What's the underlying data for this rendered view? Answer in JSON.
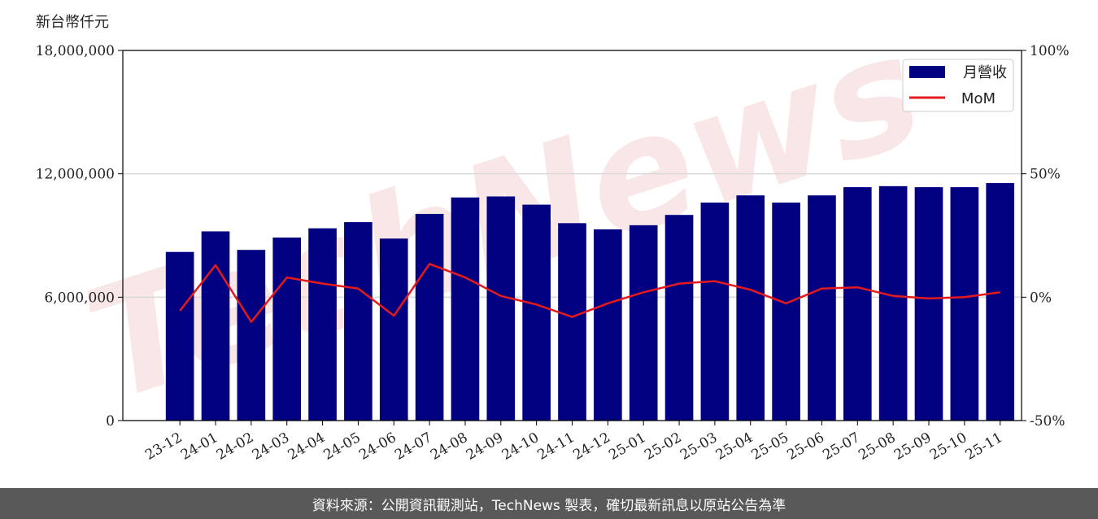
{
  "unit_label": "新台幣仟元",
  "footer_text": "資料來源：公開資訊觀測站，TechNews 製表，確切最新訊息以原站公告為準",
  "watermark": "TechNews",
  "colors": {
    "bar": "#000080",
    "line": "#e41a1c",
    "grid": "#d9d9d9",
    "footer_bg": "#595959",
    "watermark": "#f7dede"
  },
  "chart_data": {
    "type": "bar",
    "categories": [
      "23-12",
      "24-01",
      "24-02",
      "24-03",
      "24-04",
      "24-05",
      "24-06",
      "24-07",
      "24-08",
      "24-09",
      "24-10",
      "24-11",
      "24-12",
      "25-01",
      "25-02",
      "25-03",
      "25-04",
      "25-05",
      "25-06",
      "25-07",
      "25-08",
      "25-09",
      "25-10",
      "25-11"
    ],
    "series": [
      {
        "name": "月營收",
        "type": "bar",
        "axis": "left",
        "values": [
          8200000,
          9200000,
          8300000,
          8900000,
          9350000,
          9650000,
          8850000,
          10050000,
          10850000,
          10900000,
          10500000,
          9600000,
          9300000,
          9500000,
          10000000,
          10600000,
          10950000,
          10600000,
          10950000,
          11350000,
          11400000,
          11350000,
          11350000,
          11550000
        ]
      },
      {
        "name": "MoM",
        "type": "line",
        "axis": "right",
        "values": [
          -5.5,
          13.0,
          -10.0,
          8.0,
          5.5,
          3.5,
          -7.5,
          13.5,
          8.0,
          0.5,
          -3.0,
          -8.0,
          -2.5,
          2.0,
          5.5,
          6.5,
          3.0,
          -2.5,
          3.5,
          4.0,
          0.5,
          -0.5,
          0.0,
          2.0
        ]
      }
    ],
    "y_left": {
      "ylim": [
        0,
        18000000
      ],
      "ticks": [
        0,
        6000000,
        12000000,
        18000000
      ],
      "tick_labels": [
        "0",
        "6,000,000",
        "12,000,000",
        "18,000,000"
      ]
    },
    "y_right": {
      "ylim": [
        -50,
        100
      ],
      "ticks": [
        -50,
        0,
        50,
        100
      ],
      "tick_labels": [
        "-50%",
        "0%",
        "50%",
        "100%"
      ]
    },
    "grid": "horizontal",
    "legend_position": "top-right",
    "title": "",
    "xlabel": "",
    "ylabel": ""
  }
}
